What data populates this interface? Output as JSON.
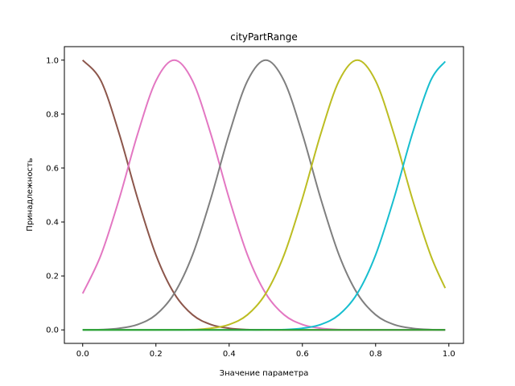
{
  "chart_data": {
    "type": "line",
    "title": "cityPartRange",
    "xlabel": "Значение параметра",
    "ylabel": "Принадлежность",
    "xlim": [
      -0.05,
      1.04
    ],
    "ylim": [
      -0.05,
      1.05
    ],
    "xticks": [
      0.0,
      0.2,
      0.4,
      0.6,
      0.8,
      1.0
    ],
    "xtick_labels": [
      "0.0",
      "0.2",
      "0.4",
      "0.6",
      "0.8",
      "1.0"
    ],
    "yticks": [
      0.0,
      0.2,
      0.4,
      0.6,
      0.8,
      1.0
    ],
    "ytick_labels": [
      "0.0",
      "0.2",
      "0.4",
      "0.6",
      "0.8",
      "1.0"
    ],
    "grid": false,
    "legend": "none",
    "x": [
      0.0,
      0.05,
      0.1,
      0.15,
      0.2,
      0.25,
      0.3,
      0.35,
      0.4,
      0.45,
      0.5,
      0.55,
      0.6,
      0.65,
      0.7,
      0.75,
      0.8,
      0.85,
      0.9,
      0.95,
      0.99
    ],
    "series": [
      {
        "color": "#8c564b",
        "values": [
          1.0,
          0.923,
          0.726,
          0.487,
          0.278,
          0.135,
          0.056,
          0.02,
          0.006,
          0.001,
          0.0003,
          0.0,
          0.0,
          0.0,
          0.0,
          0.0,
          0.0,
          0.0,
          0.0,
          0.0,
          0.0
        ]
      },
      {
        "color": "#e377c2",
        "values": [
          0.135,
          0.278,
          0.487,
          0.726,
          0.923,
          1.0,
          0.923,
          0.726,
          0.487,
          0.278,
          0.135,
          0.056,
          0.02,
          0.006,
          0.001,
          0.0003,
          0.0,
          0.0,
          0.0,
          0.0,
          0.0
        ]
      },
      {
        "color": "#7f7f7f",
        "values": [
          0.0003,
          0.001,
          0.006,
          0.02,
          0.056,
          0.135,
          0.278,
          0.487,
          0.726,
          0.923,
          1.0,
          0.923,
          0.726,
          0.487,
          0.278,
          0.135,
          0.056,
          0.02,
          0.006,
          0.001,
          0.0004
        ]
      },
      {
        "color": "#bcbd22",
        "values": [
          0.0,
          0.0,
          0.0,
          0.0,
          0.0,
          0.0003,
          0.001,
          0.006,
          0.02,
          0.056,
          0.135,
          0.278,
          0.487,
          0.726,
          0.923,
          1.0,
          0.923,
          0.726,
          0.487,
          0.278,
          0.155
        ]
      },
      {
        "color": "#17becf",
        "values": [
          0.0,
          0.0,
          0.0,
          0.0,
          0.0,
          0.0,
          0.0,
          0.0,
          0.0,
          0.0,
          0.0003,
          0.001,
          0.006,
          0.02,
          0.056,
          0.135,
          0.278,
          0.487,
          0.726,
          0.923,
          0.995
        ]
      },
      {
        "color": "#2ca02c",
        "values": [
          0.0,
          0.0,
          0.0,
          0.0,
          0.0,
          0.0,
          0.0,
          0.0,
          0.0,
          0.0,
          0.0,
          0.0,
          0.0,
          0.0,
          0.0,
          0.0,
          0.0,
          0.0,
          0.0,
          0.0,
          0.0
        ]
      }
    ]
  }
}
